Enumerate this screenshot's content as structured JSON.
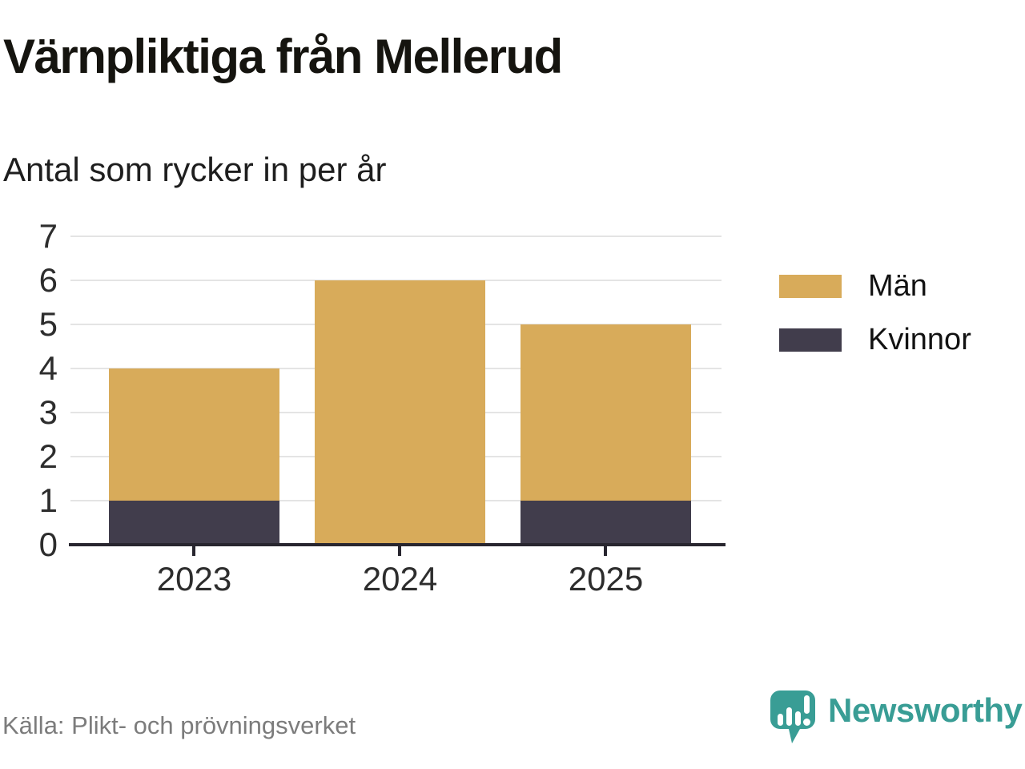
{
  "chart_data": {
    "type": "bar",
    "stacked": true,
    "title": "Värnpliktiga från Mellerud",
    "subtitle": "Antal som rycker in per år",
    "categories": [
      "2023",
      "2024",
      "2025"
    ],
    "series": [
      {
        "name": "Kvinnor",
        "color": "#413D4C",
        "values": [
          1,
          0,
          1
        ]
      },
      {
        "name": "Män",
        "color": "#D8AB5A",
        "values": [
          3,
          6,
          4
        ]
      }
    ],
    "legend": {
      "position": "right",
      "order": [
        "Män",
        "Kvinnor"
      ]
    },
    "ylim": [
      0,
      7
    ],
    "ytick_step": 1,
    "xlabel": "",
    "ylabel": "",
    "grid": true
  },
  "footer": {
    "source": "Källa: Plikt- och prövningsverket",
    "logo_text": "Newsworthy"
  },
  "colors": {
    "grid": "#E4E4E4",
    "axis": "#28262F",
    "tick_label": "#2D2D2D",
    "brand_teal": "#399D95",
    "source_text": "#7C7C7C"
  }
}
